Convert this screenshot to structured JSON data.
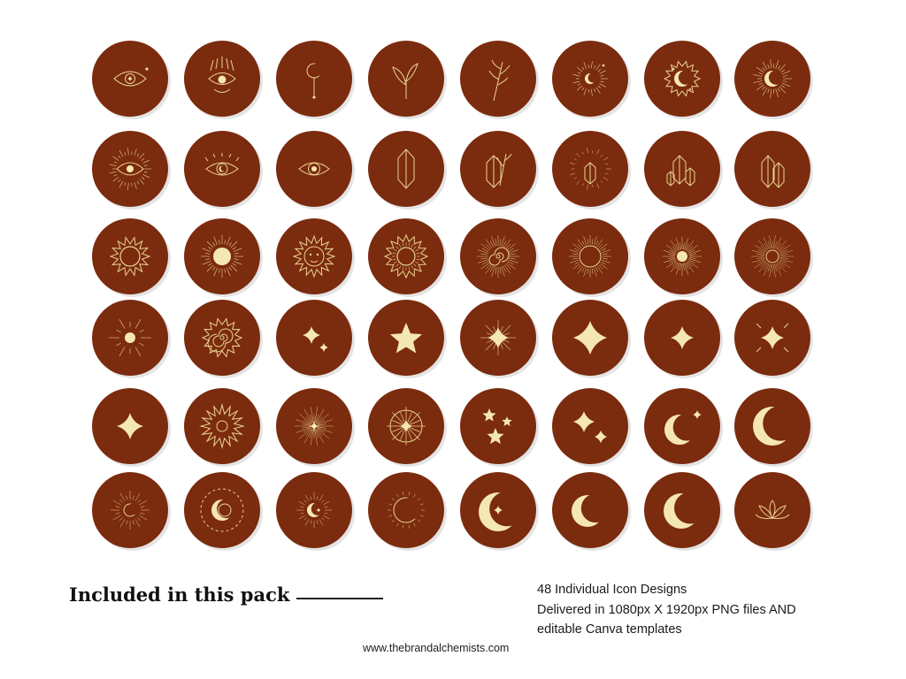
{
  "colors": {
    "circle": "#7b2b0e",
    "gold": "#e9d491",
    "gold_light": "#f5e7b3"
  },
  "grid": {
    "rows": 6,
    "columns": 8,
    "icons": [
      "eye-sparkle-icon",
      "eye-crown-icon",
      "hanging-moon-icon",
      "leaf-sprig-icon",
      "wheat-sprig-icon",
      "sun-moon-icon",
      "sun-moon-stars-icon",
      "moon-sunburst-icon",
      "eye-rays-icon",
      "eye-moon-icon",
      "eye-icon",
      "crystal-icon",
      "crystal-wheat-icon",
      "crystal-burst-icon",
      "crystal-cluster-icon",
      "crystal-pair-icon",
      "sun-flame-icon",
      "sun-disc-rays-icon",
      "sun-face-icon",
      "sun-spiral-flame-icon",
      "spiral-rays-icon",
      "sunburst-ring-icon",
      "sunburst-dot-icon",
      "sunburst-thin-icon",
      "sun-dot-rays-icon",
      "sun-spiral-icon",
      "twin-sparkles-icon",
      "star-icon",
      "sparkle-burst-icon",
      "four-point-star-icon",
      "sparkle-pair-icon",
      "sparkle-rays-icon",
      "sparkle-small-icon",
      "star-sun-icon",
      "sparkle-dots-icon",
      "compass-star-icon",
      "stars-cluster-icon",
      "sparkle-trio-icon",
      "crescent-stars-icon",
      "crescent-large-icon",
      "crescent-rays-icon",
      "crescent-ring-icon",
      "crescent-star-rays-icon",
      "crescent-arc-icon",
      "crescent-star-icon",
      "crescent-bold-icon",
      "crescent-thin-icon",
      "lotus-icon"
    ]
  },
  "footer": {
    "title": "Included in this pack",
    "details": [
      "48 Individual Icon Designs",
      "Delivered in 1080px X 1920px PNG files AND",
      "editable Canva templates"
    ],
    "website": "www.thebrandalchemists.com"
  }
}
